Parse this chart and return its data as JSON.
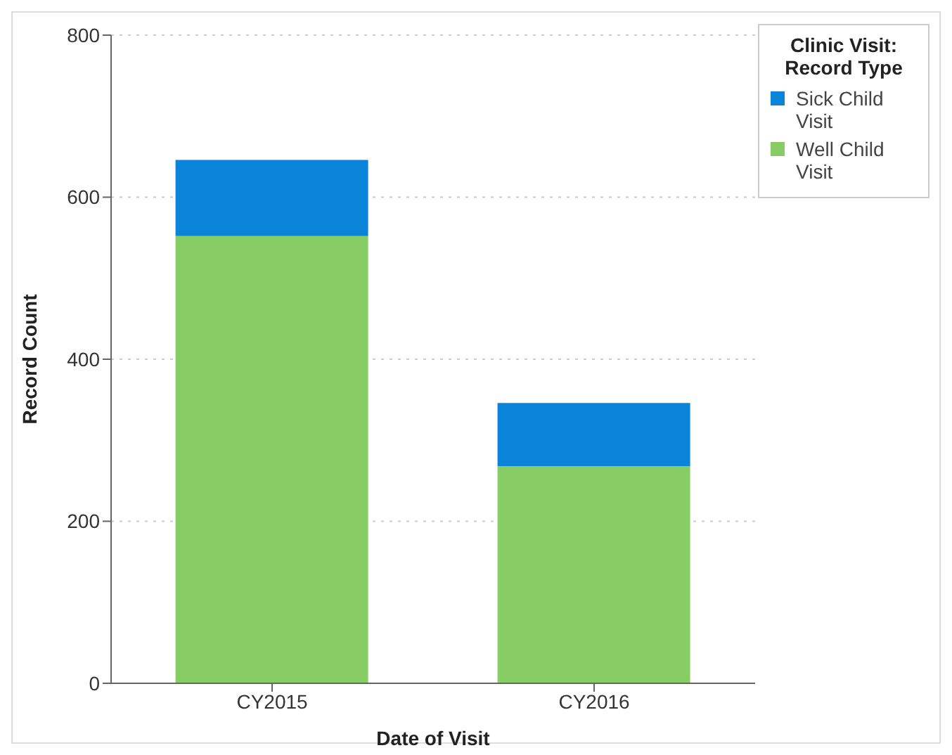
{
  "chart_data": {
    "type": "bar",
    "stacked": true,
    "xlabel": "Date of Visit",
    "ylabel": "Record Count",
    "legend_title": "Clinic Visit: Record Type",
    "categories": [
      "CY2015",
      "CY2016"
    ],
    "series": [
      {
        "name": "Well Child Visit",
        "color": "#88cc66",
        "values": [
          552,
          268
        ]
      },
      {
        "name": "Sick Child Visit",
        "color": "#0a84d8",
        "values": [
          94,
          78
        ]
      }
    ],
    "ylim": [
      0,
      800
    ],
    "yticks": [
      0,
      200,
      400,
      600,
      800
    ],
    "grid": "y",
    "legend": "top right"
  }
}
